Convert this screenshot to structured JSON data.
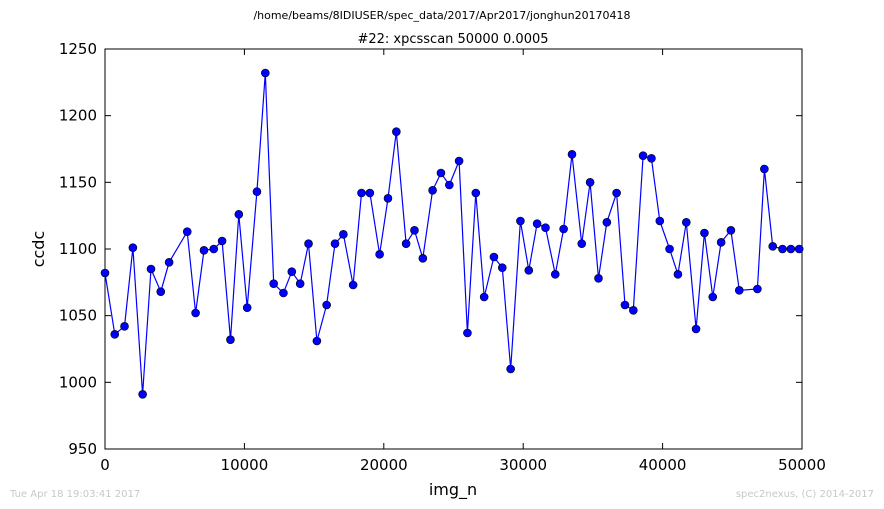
{
  "chart_data": {
    "type": "line",
    "suptitle": "/home/beams/8IDIUSER/spec_data/2017/Apr2017/jonghun20170418",
    "title": "#22: xpcsscan 50000 0.0005",
    "xlabel": "img_n",
    "ylabel": "ccdc",
    "xlim": [
      0,
      50000
    ],
    "ylim": [
      950,
      1250
    ],
    "xticks": [
      "0",
      "10000",
      "20000",
      "30000",
      "40000",
      "50000"
    ],
    "yticks": [
      "950",
      "1000",
      "1050",
      "1100",
      "1150",
      "1200",
      "1250"
    ],
    "grid": false,
    "legend": "none",
    "color": "#0000ff",
    "series": [
      {
        "marker": "circle",
        "x": [
          0,
          700,
          1400,
          2000,
          2700,
          3300,
          4000,
          4600,
          5900,
          6500,
          7100,
          7800,
          8400,
          9000,
          9600,
          10200,
          10900,
          11500,
          12100,
          12800,
          13400,
          14000,
          14600,
          15200,
          15900,
          16500,
          17100,
          17800,
          18400,
          19000,
          19700,
          20300,
          20900,
          21600,
          22200,
          22800,
          23500,
          24100,
          24700,
          25400,
          26000,
          26600,
          27200,
          27900,
          28500,
          29100,
          29800,
          30400,
          31000,
          31600,
          32300,
          32900,
          33500,
          34200,
          34800,
          35400,
          36000,
          36700,
          37300,
          37900,
          38600,
          39200,
          39800,
          40500,
          41100,
          41700,
          42400,
          43000,
          43600,
          44200,
          44900,
          45500,
          46800,
          47300,
          47900,
          48600,
          49200,
          49800
        ],
        "y": [
          1082,
          1036,
          1042,
          1101,
          991,
          1085,
          1068,
          1090,
          1113,
          1052,
          1099,
          1100,
          1106,
          1032,
          1126,
          1056,
          1143,
          1232,
          1074,
          1067,
          1083,
          1074,
          1104,
          1031,
          1058,
          1104,
          1111,
          1073,
          1142,
          1142,
          1096,
          1138,
          1188,
          1104,
          1114,
          1093,
          1144,
          1157,
          1148,
          1166,
          1037,
          1142,
          1064,
          1094,
          1086,
          1010,
          1121,
          1084,
          1119,
          1116,
          1081,
          1115,
          1171,
          1104,
          1150,
          1078,
          1120,
          1142,
          1058,
          1054,
          1170,
          1168,
          1121,
          1100,
          1081,
          1120,
          1040,
          1112,
          1064,
          1105,
          1114,
          1069,
          1070,
          1160,
          1102,
          1100,
          1100,
          1100
        ]
      }
    ]
  },
  "footer": {
    "timestamp": "Tue Apr 18 19:03:41 2017",
    "credit": "spec2nexus, (C) 2014-2017"
  }
}
